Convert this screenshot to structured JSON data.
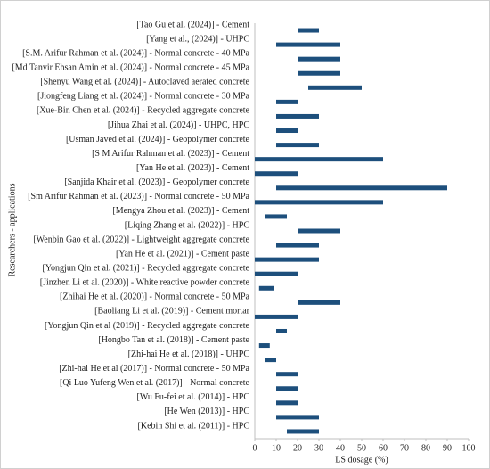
{
  "chart_data": {
    "type": "floating-bar",
    "orientation": "horizontal",
    "xlabel": "LS dosage (%)",
    "ylabel": "Researchers - applications",
    "color": "#1d4f7c",
    "xlim": [
      0,
      100
    ],
    "xticks": [
      0,
      10,
      20,
      30,
      40,
      50,
      60,
      70,
      80,
      90,
      100
    ],
    "categories": [
      "[Tao Gu et al. (2024)] - Cement",
      "[Yang et al., (2024)] - UHPC",
      "[S.M. Arifur Rahman et al. (2024)] - Normal concrete - 40 MPa",
      "[Md Tanvir Ehsan Amin et al. (2024)] - Normal concrete - 45 MPa",
      "[Shenyu Wang et al. (2024)] - Autoclaved aerated concrete",
      "[Jiongfeng Liang et al. (2024)] - Normal concrete - 30 MPa",
      "[Xue-Bin Chen et al. (2024)] - Recycled aggregate concrete",
      "[Jihua Zhai et al. (2024)] - UHPC, HPC",
      "[Usman Javed et al. (2024)] - Geopolymer concrete",
      "[S M Arifur Rahman et al. (2023)] - Cement",
      "[Yan He et al. (2023)] - Cement",
      "[Sanjida Khair et al. (2023)] - Geopolymer concrete",
      "[Sm Arifur Rahman et al. (2023)] - Normal concrete - 50 MPa",
      "[Mengya Zhou et al. (2023)] - Cement",
      "[Liqing Zhang et al. (2022)] - HPC",
      "[Wenbin Gao et al. (2022)] - Lightweight aggregate concrete",
      "[Yan He et al. (2021)] - Cement paste",
      "[Yongjun Qin et al. (2021)] - Recycled aggregate concrete",
      "[Jinzhen Li et al. (2020)] - White reactive powder concrete",
      "[Zhihai He et al. (2020)] - Normal concrete - 50 MPa",
      "[Baoliang Li et al. (2019)] - Cement mortar",
      "[Yongjun Qin et al (2019)] - Recycled aggregate concrete",
      "[Hongbo Tan et al. (2018)] - Cement paste",
      "[Zhi-hai He et al. (2018)] - UHPC",
      "[Zhi-hai He et al (2017)] - Normal concrete - 50 MPa",
      "[Qi Luo Yufeng Wen et al. (2017)] - Normal concrete",
      "[Wu Fu-fei et al. (2014)] - HPC",
      "[He Wen (2013)] - HPC",
      "[Kebin Shi et al. (2011)] - HPC"
    ],
    "values": [
      [
        20,
        30
      ],
      [
        10,
        40
      ],
      [
        20,
        40
      ],
      [
        20,
        40
      ],
      [
        25,
        50
      ],
      [
        10,
        20
      ],
      [
        10,
        30
      ],
      [
        10,
        20
      ],
      [
        10,
        30
      ],
      [
        0,
        60
      ],
      [
        0,
        20
      ],
      [
        10,
        90
      ],
      [
        0,
        60
      ],
      [
        5,
        15
      ],
      [
        20,
        40
      ],
      [
        10,
        30
      ],
      [
        0,
        30
      ],
      [
        0,
        20
      ],
      [
        2,
        9
      ],
      [
        20,
        40
      ],
      [
        0,
        20
      ],
      [
        10,
        15
      ],
      [
        2,
        7
      ],
      [
        5,
        10
      ],
      [
        10,
        20
      ],
      [
        10,
        20
      ],
      [
        10,
        20
      ],
      [
        10,
        30
      ],
      [
        15,
        30
      ]
    ]
  }
}
